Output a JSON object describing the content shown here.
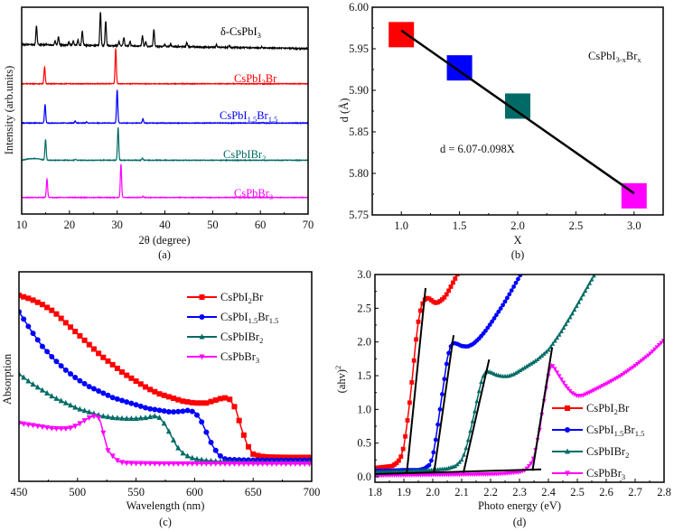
{
  "chart_data": [
    {
      "id": "a",
      "type": "line",
      "panel_label": "(a)",
      "xlabel": "2θ (degree)",
      "ylabel": "Intensity (arb.units)",
      "xlim": [
        10,
        70
      ],
      "xticks": [
        10,
        20,
        30,
        40,
        50,
        60,
        70
      ],
      "yticks": [],
      "grid": false,
      "series": [
        {
          "name": "δ-CsPbI3",
          "label_main": "δ-CsPbI",
          "label_sub": "3",
          "label_tail": "",
          "color": "#000000",
          "baseline": 0.82,
          "peaks": [
            [
              13.1,
              0.09
            ],
            [
              17.0,
              0.02
            ],
            [
              17.7,
              0.04
            ],
            [
              19.9,
              0.015
            ],
            [
              20.8,
              0.02
            ],
            [
              21.8,
              0.025
            ],
            [
              22.7,
              0.07
            ],
            [
              26.5,
              0.16
            ],
            [
              27.6,
              0.12
            ],
            [
              30.4,
              0.02
            ],
            [
              31.4,
              0.04
            ],
            [
              32.7,
              0.02
            ],
            [
              35.3,
              0.05
            ],
            [
              36.0,
              0.02
            ],
            [
              37.7,
              0.08
            ],
            [
              40.0,
              0.01
            ],
            [
              41.2,
              0.01
            ],
            [
              44.6,
              0.02
            ],
            [
              50.8,
              0.012
            ],
            [
              53.5,
              0.008
            ],
            [
              60.3,
              0.005
            ]
          ]
        },
        {
          "name": "CsPbI2Br",
          "label_main": "CsPbI",
          "label_sub": "2",
          "label_tail": "Br",
          "color": "#ff0000",
          "baseline": 0.63,
          "peaks": [
            [
              14.8,
              0.08
            ],
            [
              29.7,
              0.17
            ]
          ]
        },
        {
          "name": "CsPbI1.5Br1.5",
          "label_main": "CsPbI",
          "label_sub": "1.5",
          "label_tail": "Br",
          "label_sub2": "1.5",
          "color": "#0000ff",
          "baseline": 0.44,
          "peaks": [
            [
              14.9,
              0.09
            ],
            [
              21.2,
              0.01
            ],
            [
              23.6,
              0.005
            ],
            [
              30.0,
              0.16
            ],
            [
              35.4,
              0.02
            ],
            [
              60.5,
              0.003
            ]
          ]
        },
        {
          "name": "CsPbIBr2",
          "label_main": "CsPbIBr",
          "label_sub": "2",
          "label_tail": "",
          "color": "#006b66",
          "baseline": 0.26,
          "peaks": [
            [
              15.0,
              0.1
            ],
            [
              21.3,
              0.005
            ],
            [
              30.2,
              0.16
            ],
            [
              35.3,
              0.01
            ]
          ]
        },
        {
          "name": "CsPbBr3",
          "label_main": "CsPbBr",
          "label_sub": "3",
          "label_tail": "",
          "color": "#ff00ff",
          "baseline": 0.08,
          "peaks": [
            [
              15.3,
              0.09
            ],
            [
              30.8,
              0.16
            ],
            [
              35.4,
              0.005
            ]
          ]
        }
      ]
    },
    {
      "id": "b",
      "type": "scatter",
      "panel_label": "(b)",
      "xlabel": "X",
      "ylabel": "d (Å)",
      "xlim": [
        0.75,
        3.25
      ],
      "ylim": [
        5.75,
        6.0
      ],
      "xticks": [
        "1.0",
        "1.5",
        "2.0",
        "2.5",
        "3.0"
      ],
      "yticks": [
        "5.75",
        "5.80",
        "5.85",
        "5.90",
        "5.95",
        "6.00"
      ],
      "grid": false,
      "annotation_formula": "CsPbI3-xBrx",
      "annotation_main": "CsPbI",
      "annotation_sub1": "3-x",
      "annotation_mid": "Br",
      "annotation_sub2": "x",
      "fit_label": "d = 6.07-0.098X",
      "fit": {
        "x": [
          1.0,
          3.0
        ],
        "y": [
          5.972,
          5.776
        ]
      },
      "points": [
        {
          "x": 1.0,
          "y": 5.967,
          "color": "#ff0000"
        },
        {
          "x": 1.5,
          "y": 5.927,
          "color": "#0000ff"
        },
        {
          "x": 2.0,
          "y": 5.881,
          "color": "#006b66"
        },
        {
          "x": 3.0,
          "y": 5.773,
          "color": "#ff00ff"
        }
      ]
    },
    {
      "id": "c",
      "type": "line",
      "panel_label": "(c)",
      "xlabel": "Wavelength (nm)",
      "ylabel": "Absorption",
      "xlim": [
        450,
        700
      ],
      "ylim": [
        0,
        1
      ],
      "xticks": [
        450,
        500,
        550,
        600,
        650,
        700
      ],
      "grid": false,
      "legend": "top-right",
      "series": [
        {
          "name": "CsPbI2Br",
          "color": "#ff0000",
          "marker": "square",
          "x": [
            450,
            460,
            470,
            480,
            490,
            500,
            510,
            520,
            530,
            540,
            550,
            560,
            570,
            580,
            590,
            600,
            610,
            620,
            625,
            630,
            635,
            640,
            645,
            650,
            655,
            660,
            670,
            680,
            690,
            700
          ],
          "y": [
            0.95,
            0.93,
            0.9,
            0.86,
            0.8,
            0.74,
            0.68,
            0.62,
            0.57,
            0.52,
            0.48,
            0.44,
            0.41,
            0.39,
            0.37,
            0.36,
            0.36,
            0.38,
            0.39,
            0.38,
            0.33,
            0.22,
            0.13,
            0.08,
            0.07,
            0.065,
            0.063,
            0.062,
            0.062,
            0.062
          ]
        },
        {
          "name": "CsPbI1.5Br1.5",
          "color": "#0000ff",
          "marker": "circle",
          "x": [
            450,
            460,
            470,
            480,
            490,
            500,
            510,
            520,
            530,
            540,
            550,
            560,
            570,
            580,
            590,
            595,
            600,
            605,
            610,
            615,
            620,
            625,
            630,
            640,
            650,
            660,
            670,
            680,
            690,
            700
          ],
          "y": [
            0.86,
            0.76,
            0.67,
            0.6,
            0.54,
            0.49,
            0.45,
            0.42,
            0.39,
            0.37,
            0.35,
            0.33,
            0.32,
            0.31,
            0.315,
            0.32,
            0.31,
            0.27,
            0.2,
            0.13,
            0.08,
            0.055,
            0.05,
            0.048,
            0.047,
            0.046,
            0.046,
            0.046,
            0.046,
            0.046
          ]
        },
        {
          "name": "CsPbIBr2",
          "color": "#006b66",
          "marker": "triangle-up",
          "x": [
            450,
            460,
            470,
            480,
            490,
            500,
            510,
            520,
            530,
            540,
            550,
            560,
            565,
            570,
            575,
            580,
            585,
            590,
            595,
            600,
            610,
            620,
            630,
            650,
            670,
            690,
            700
          ],
          "y": [
            0.52,
            0.47,
            0.43,
            0.39,
            0.36,
            0.33,
            0.31,
            0.29,
            0.28,
            0.275,
            0.275,
            0.28,
            0.29,
            0.28,
            0.24,
            0.18,
            0.12,
            0.085,
            0.065,
            0.055,
            0.045,
            0.04,
            0.038,
            0.036,
            0.035,
            0.035,
            0.035
          ]
        },
        {
          "name": "CsPbBr3",
          "color": "#ff00ff",
          "marker": "triangle-down",
          "x": [
            450,
            460,
            470,
            480,
            490,
            495,
            500,
            505,
            510,
            515,
            518,
            520,
            523,
            526,
            530,
            535,
            540,
            550,
            570,
            600,
            650,
            700
          ],
          "y": [
            0.25,
            0.24,
            0.23,
            0.22,
            0.22,
            0.225,
            0.24,
            0.26,
            0.28,
            0.29,
            0.28,
            0.25,
            0.17,
            0.1,
            0.07,
            0.04,
            0.032,
            0.03,
            0.028,
            0.028,
            0.027,
            0.027
          ]
        }
      ]
    },
    {
      "id": "d",
      "type": "line",
      "panel_label": "(d)",
      "xlabel": "Photo energy (eV)",
      "ylabel": "(ahv)²",
      "ylabel_main": "(ahv)",
      "ylabel_sup": "2",
      "xlim": [
        1.8,
        2.8
      ],
      "ylim": [
        0.0,
        3.0
      ],
      "xticks": [
        "1.8",
        "1.9",
        "2.0",
        "2.1",
        "2.2",
        "2.3",
        "2.4",
        "2.5",
        "2.6",
        "2.7",
        "2.8"
      ],
      "yticks": [
        "0.0",
        "0.5",
        "1.0",
        "1.5",
        "2.0",
        "2.5",
        "3.0"
      ],
      "grid": false,
      "legend": "bottom-right",
      "series": [
        {
          "name": "CsPbI2Br",
          "color": "#ff0000",
          "marker": "square",
          "x": [
            1.8,
            1.82,
            1.84,
            1.86,
            1.88,
            1.89,
            1.9,
            1.91,
            1.92,
            1.93,
            1.94,
            1.95,
            1.96,
            1.97,
            1.98,
            1.99,
            2.0,
            2.01,
            2.02,
            2.03,
            2.04,
            2.05,
            2.06,
            2.07,
            2.08,
            2.09,
            2.1,
            2.11,
            2.12
          ],
          "y": [
            0.13,
            0.14,
            0.15,
            0.16,
            0.22,
            0.3,
            0.45,
            0.75,
            1.1,
            1.5,
            1.95,
            2.3,
            2.52,
            2.62,
            2.65,
            2.64,
            2.6,
            2.58,
            2.59,
            2.62,
            2.66,
            2.72,
            2.8,
            2.88,
            2.96,
            3.05,
            3.1,
            3.2,
            3.3
          ]
        },
        {
          "name": "CsPbI1.5Br1.5",
          "color": "#0000ff",
          "marker": "circle",
          "x": [
            1.8,
            1.85,
            1.9,
            1.95,
            1.97,
            1.99,
            2.0,
            2.01,
            2.02,
            2.03,
            2.04,
            2.05,
            2.06,
            2.07,
            2.08,
            2.09,
            2.1,
            2.12,
            2.14,
            2.16,
            2.18,
            2.2,
            2.22,
            2.24,
            2.26,
            2.28,
            2.3,
            2.31
          ],
          "y": [
            0.09,
            0.09,
            0.1,
            0.1,
            0.12,
            0.18,
            0.3,
            0.55,
            0.85,
            1.15,
            1.45,
            1.75,
            1.92,
            1.98,
            1.98,
            1.96,
            1.94,
            1.93,
            1.97,
            2.05,
            2.15,
            2.27,
            2.4,
            2.53,
            2.67,
            2.82,
            2.97,
            3.05
          ]
        },
        {
          "name": "CsPbIBr2",
          "color": "#006b66",
          "marker": "triangle-up",
          "x": [
            1.8,
            1.9,
            2.0,
            2.05,
            2.08,
            2.1,
            2.11,
            2.12,
            2.13,
            2.14,
            2.15,
            2.16,
            2.17,
            2.18,
            2.19,
            2.2,
            2.22,
            2.24,
            2.26,
            2.28,
            2.3,
            2.33,
            2.36,
            2.4,
            2.44,
            2.48,
            2.52,
            2.56
          ],
          "y": [
            0.07,
            0.08,
            0.1,
            0.12,
            0.16,
            0.25,
            0.35,
            0.5,
            0.68,
            0.87,
            1.07,
            1.27,
            1.45,
            1.54,
            1.56,
            1.55,
            1.51,
            1.49,
            1.49,
            1.52,
            1.57,
            1.65,
            1.73,
            1.88,
            2.12,
            2.4,
            2.7,
            3.0
          ]
        },
        {
          "name": "CsPbBr3",
          "color": "#ff00ff",
          "marker": "triangle-down",
          "x": [
            1.8,
            1.9,
            2.0,
            2.1,
            2.2,
            2.25,
            2.3,
            2.32,
            2.34,
            2.35,
            2.36,
            2.37,
            2.38,
            2.39,
            2.4,
            2.41,
            2.42,
            2.44,
            2.46,
            2.48,
            2.5,
            2.52,
            2.55,
            2.6,
            2.65,
            2.7,
            2.75,
            2.8
          ],
          "y": [
            0.02,
            0.025,
            0.03,
            0.035,
            0.04,
            0.05,
            0.07,
            0.1,
            0.2,
            0.3,
            0.5,
            0.7,
            1.0,
            1.25,
            1.5,
            1.67,
            1.62,
            1.48,
            1.35,
            1.25,
            1.2,
            1.21,
            1.27,
            1.38,
            1.5,
            1.65,
            1.82,
            2.03
          ]
        }
      ],
      "fit_lines": [
        {
          "x": [
            1.91,
            1.975
          ],
          "y": [
            0.05,
            2.8
          ]
        },
        {
          "x": [
            2.004,
            2.072
          ],
          "y": [
            0.05,
            2.1
          ]
        },
        {
          "x": [
            2.106,
            2.195
          ],
          "y": [
            0.06,
            1.74
          ]
        },
        {
          "x": [
            2.345,
            2.413
          ],
          "y": [
            0.09,
            1.92
          ]
        },
        {
          "x": [
            1.8,
            2.375
          ],
          "y": [
            0.04,
            0.11
          ]
        }
      ]
    }
  ]
}
